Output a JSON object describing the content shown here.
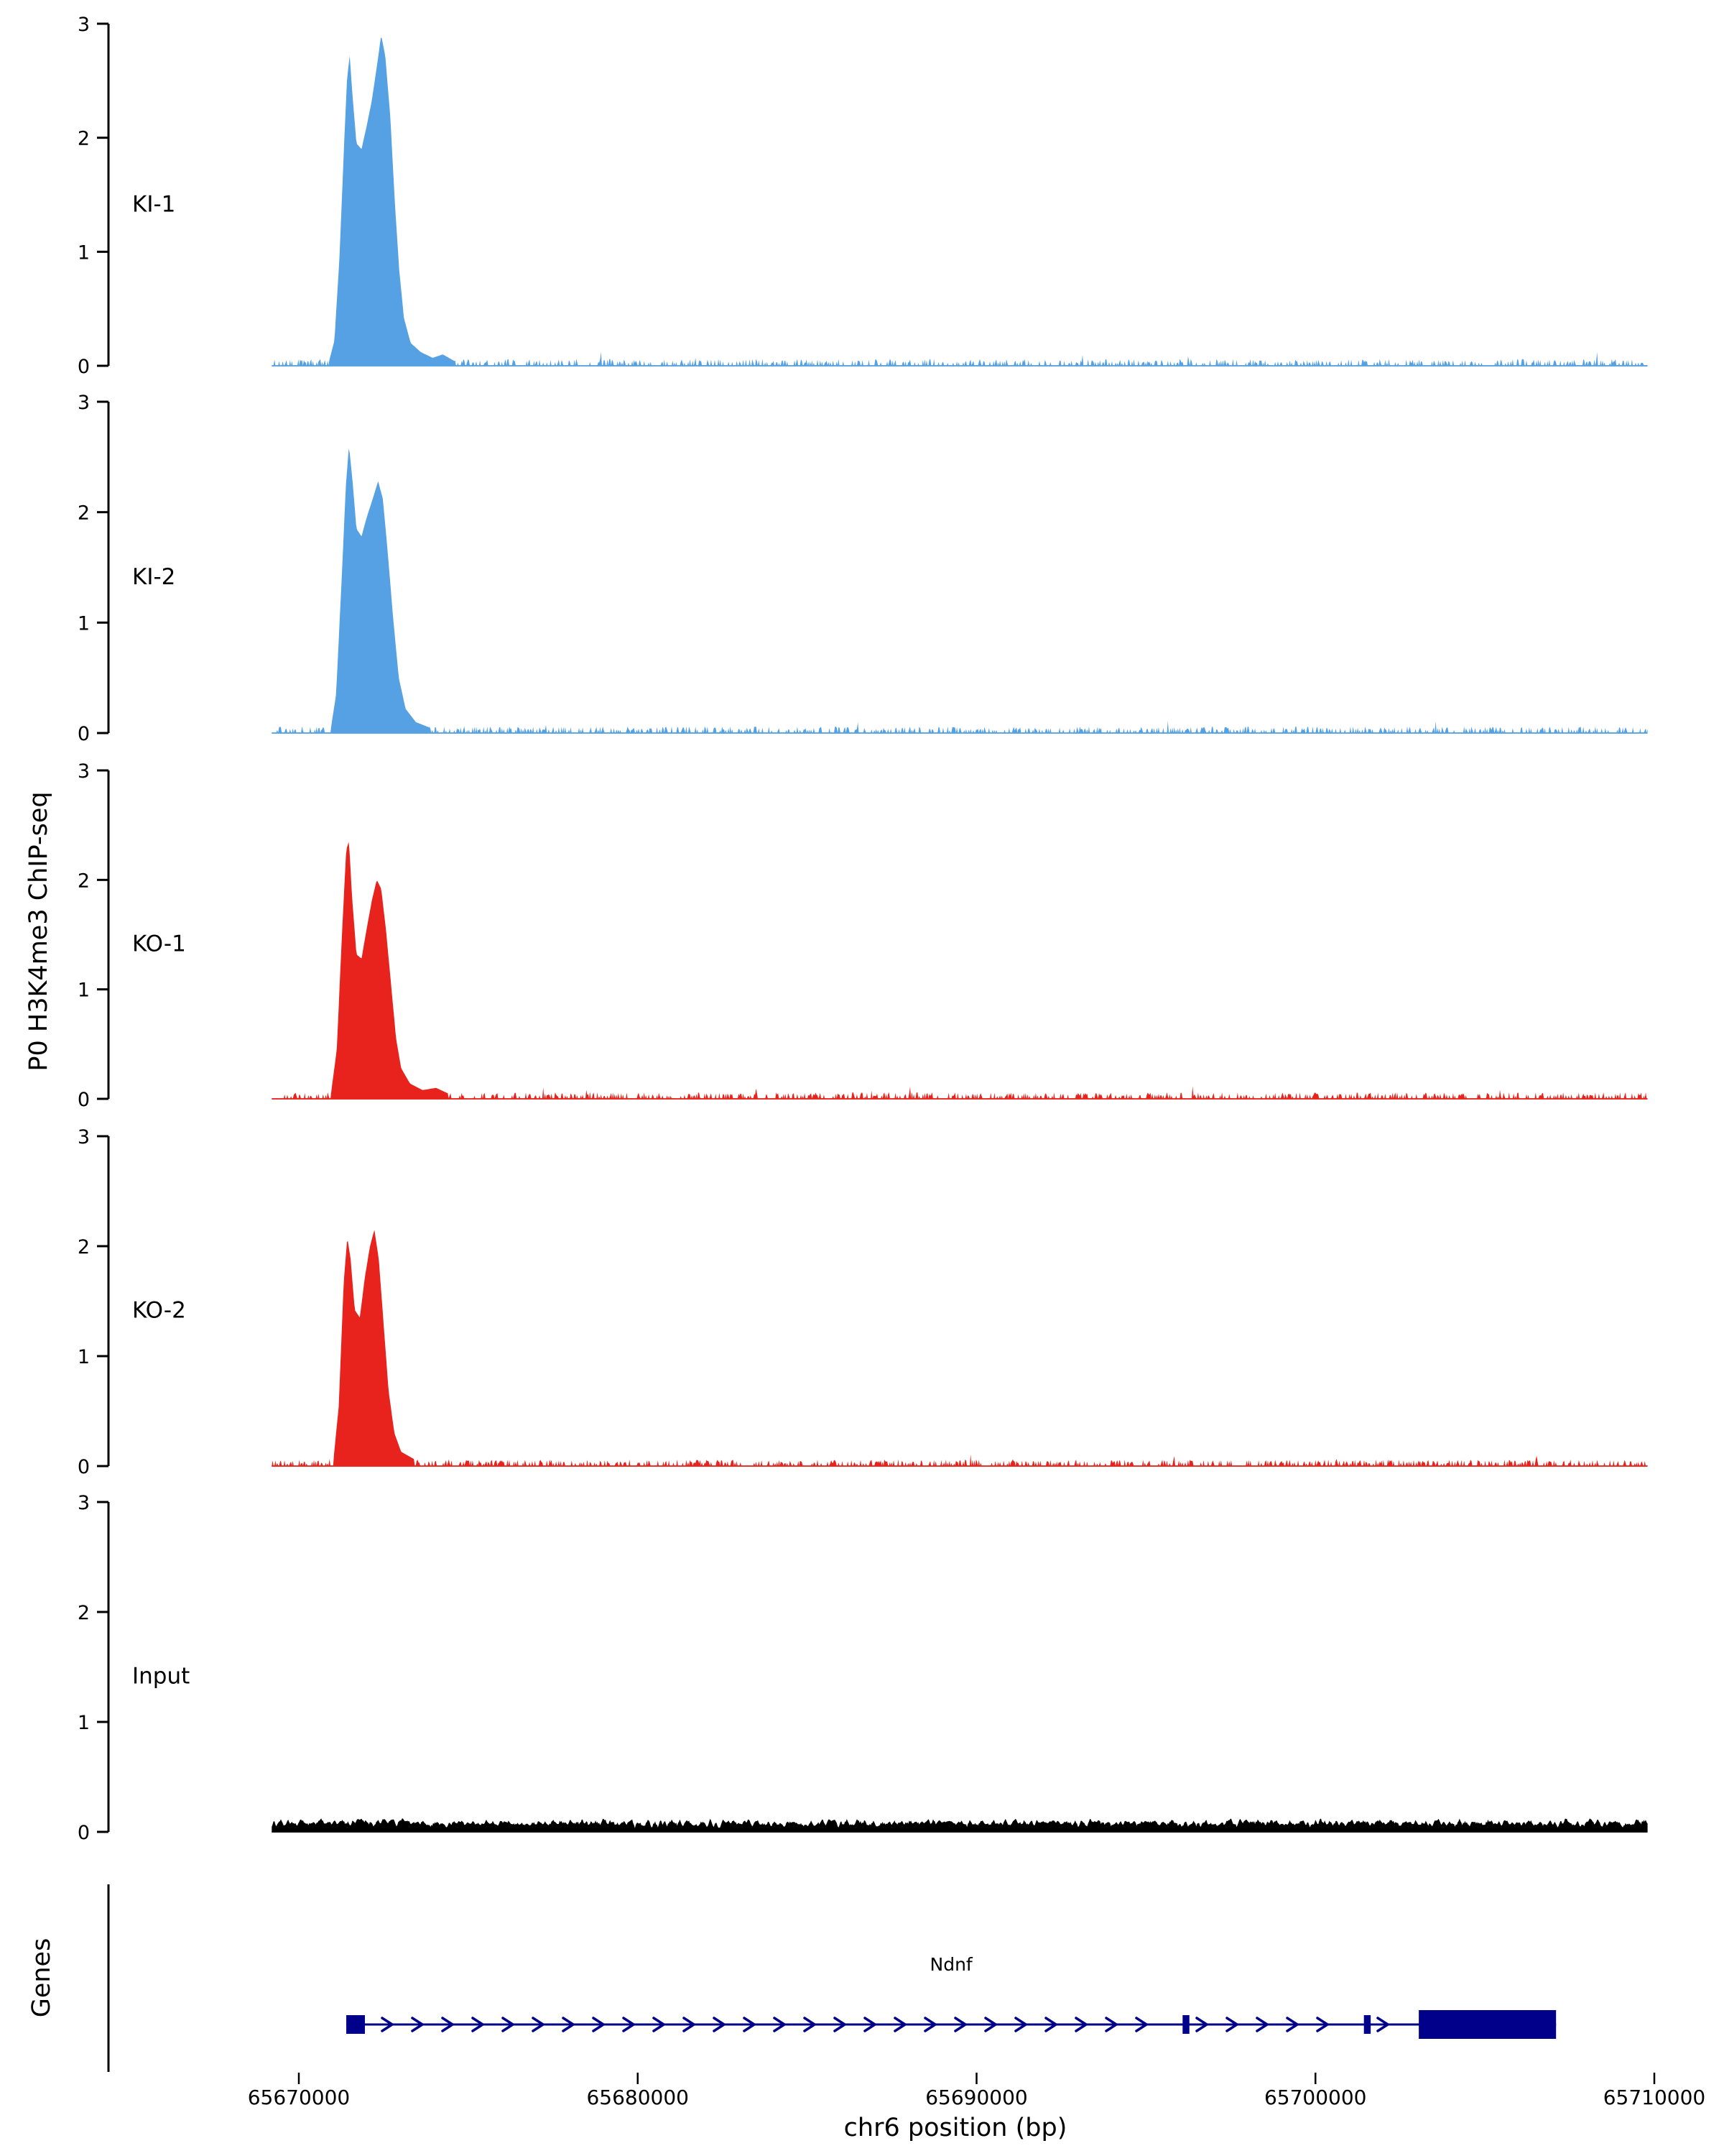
{
  "figure": {
    "y_axis_title": "P0 H3K4me3 ChIP-seq",
    "x_axis_title": "chr6 position (bp)",
    "genes_panel_label": "Genes"
  },
  "chart_data": {
    "type": "area",
    "title": "",
    "x_axis": {
      "label": "chr6 position (bp)",
      "ticks": [
        65670000,
        65680000,
        65690000,
        65700000,
        65710000
      ],
      "tick_labels": [
        "65670000",
        "65680000",
        "65690000",
        "65700000",
        "65710000"
      ],
      "data_range_bp": [
        65669200,
        65709800
      ]
    },
    "y_axis": {
      "label": "P0 H3K4me3 ChIP-seq",
      "ticks": [
        0,
        1,
        2,
        3
      ],
      "tick_labels": [
        "0",
        "1",
        "2",
        "3"
      ],
      "ylim": [
        0,
        3
      ]
    },
    "tracks": [
      {
        "name": "KI-1",
        "color": "#55a1e3",
        "noise_level": 0.06,
        "seed": 11,
        "peak_points": [
          [
            65670900,
            0.05
          ],
          [
            65671050,
            0.22
          ],
          [
            65671200,
            0.95
          ],
          [
            65671330,
            1.9
          ],
          [
            65671420,
            2.5
          ],
          [
            65671500,
            2.72
          ],
          [
            65671590,
            2.35
          ],
          [
            65671700,
            1.95
          ],
          [
            65671850,
            1.9
          ],
          [
            65672000,
            2.1
          ],
          [
            65672150,
            2.32
          ],
          [
            65672300,
            2.62
          ],
          [
            65672430,
            2.9
          ],
          [
            65672550,
            2.72
          ],
          [
            65672700,
            2.18
          ],
          [
            65672830,
            1.45
          ],
          [
            65672960,
            0.85
          ],
          [
            65673100,
            0.42
          ],
          [
            65673300,
            0.2
          ],
          [
            65673600,
            0.12
          ],
          [
            65673950,
            0.07
          ],
          [
            65674250,
            0.1
          ],
          [
            65674600,
            0.04
          ]
        ]
      },
      {
        "name": "KI-2",
        "color": "#55a1e3",
        "noise_level": 0.06,
        "seed": 22,
        "peak_points": [
          [
            65670950,
            0.05
          ],
          [
            65671100,
            0.35
          ],
          [
            65671250,
            1.3
          ],
          [
            65671390,
            2.25
          ],
          [
            65671480,
            2.6
          ],
          [
            65671580,
            2.3
          ],
          [
            65671700,
            1.85
          ],
          [
            65671850,
            1.78
          ],
          [
            65672000,
            1.95
          ],
          [
            65672180,
            2.12
          ],
          [
            65672340,
            2.28
          ],
          [
            65672480,
            2.12
          ],
          [
            65672620,
            1.65
          ],
          [
            65672780,
            1.05
          ],
          [
            65672950,
            0.5
          ],
          [
            65673150,
            0.22
          ],
          [
            65673450,
            0.1
          ],
          [
            65673850,
            0.05
          ]
        ]
      },
      {
        "name": "KO-1",
        "color": "#e8221c",
        "noise_level": 0.06,
        "seed": 33,
        "peak_points": [
          [
            65670950,
            0.05
          ],
          [
            65671120,
            0.45
          ],
          [
            65671280,
            1.55
          ],
          [
            65671400,
            2.28
          ],
          [
            65671480,
            2.35
          ],
          [
            65671570,
            1.85
          ],
          [
            65671700,
            1.32
          ],
          [
            65671850,
            1.28
          ],
          [
            65672000,
            1.55
          ],
          [
            65672160,
            1.82
          ],
          [
            65672300,
            2.0
          ],
          [
            65672430,
            1.92
          ],
          [
            65672570,
            1.55
          ],
          [
            65672720,
            1.05
          ],
          [
            65672870,
            0.55
          ],
          [
            65673020,
            0.28
          ],
          [
            65673280,
            0.14
          ],
          [
            65673650,
            0.08
          ],
          [
            65674050,
            0.1
          ],
          [
            65674400,
            0.05
          ]
        ]
      },
      {
        "name": "KO-2",
        "color": "#e8221c",
        "noise_level": 0.06,
        "seed": 44,
        "peak_points": [
          [
            65671020,
            0.05
          ],
          [
            65671180,
            0.55
          ],
          [
            65671320,
            1.65
          ],
          [
            65671430,
            2.08
          ],
          [
            65671530,
            1.88
          ],
          [
            65671650,
            1.42
          ],
          [
            65671800,
            1.35
          ],
          [
            65671950,
            1.72
          ],
          [
            65672100,
            2.0
          ],
          [
            65672230,
            2.15
          ],
          [
            65672360,
            1.88
          ],
          [
            65672500,
            1.3
          ],
          [
            65672650,
            0.68
          ],
          [
            65672820,
            0.3
          ],
          [
            65673020,
            0.13
          ],
          [
            65673420,
            0.06
          ]
        ]
      },
      {
        "name": "Input",
        "color": "#000000",
        "noise_level": 0.13,
        "seed": 55,
        "peak_points": []
      }
    ],
    "genes": {
      "panel_label": "Genes",
      "gene": {
        "name": "Ndnf",
        "color": "#00008b",
        "strand": "+",
        "transcript_start_bp": 65671400,
        "transcript_end_bp": 65707100,
        "exons": [
          {
            "start": 65671400,
            "end": 65671950,
            "size": "small"
          },
          {
            "start": 65696080,
            "end": 65696280,
            "size": "small"
          },
          {
            "start": 65701430,
            "end": 65701630,
            "size": "small"
          },
          {
            "start": 65703050,
            "end": 65707100,
            "size": "large"
          }
        ]
      }
    }
  }
}
